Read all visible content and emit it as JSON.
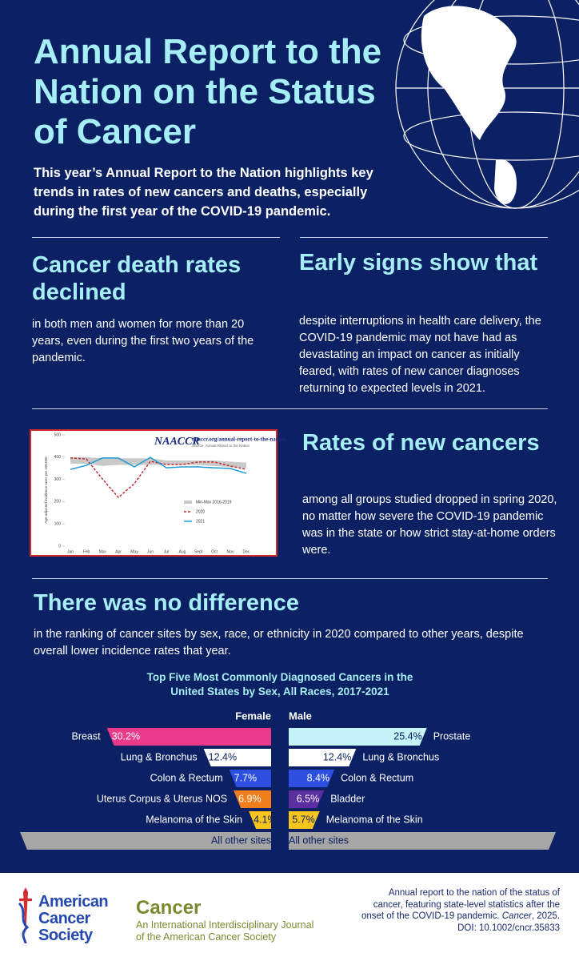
{
  "header": {
    "title": "Annual Report to the Nation on the Status of Cancer",
    "intro": "This year’s Annual Report to the Nation highlights key trends in rates of new cancers and deaths, especially during the first year of the COVID-19 pandemic."
  },
  "sections": [
    {
      "heading": "Cancer death rates declined",
      "body": "in both men and women for more than 20 years, even during the first two years of the pandemic."
    },
    {
      "heading": "Early signs show that",
      "body": "despite interruptions in health care delivery, the COVID-19 pandemic may not have had as devastating an impact on cancer as initially feared, with rates of new cancer diagnoses returning to expected levels in 2021."
    },
    {
      "heading": "Rates of new cancers",
      "body": "among all groups studied dropped in spring 2020, no matter how severe the COVID-19 pandemic was in the state or how strict stay-at-home orders were."
    },
    {
      "heading": "There was no difference",
      "body": "in the ranking of cancer sites by sex, race, or ethnicity in 2020 compared to other years, despite overall lower incidence rates that year."
    }
  ],
  "chart_data": [
    {
      "type": "line",
      "logo": "NAACCR",
      "title": "naaccr.org/annual-report-to-the-nation",
      "subtitle": "Source: Annual Report to the Nation",
      "y_label": "Age-adjusted incidence rates per 100,000",
      "categories": [
        "Jan",
        "Feb",
        "Mar",
        "Apr",
        "May",
        "Jun",
        "Jul",
        "Aug",
        "Sept",
        "Oct",
        "Nov",
        "Dec"
      ],
      "band": {
        "name": "Min-Max 2016-2019",
        "color": "#c9c9c9",
        "low": [
          370,
          370,
          360,
          365,
          365,
          365,
          365,
          365,
          365,
          360,
          355,
          350
        ],
        "high": [
          400,
          400,
          395,
          395,
          395,
          395,
          385,
          385,
          385,
          385,
          380,
          375
        ]
      },
      "series": [
        {
          "name": "2020",
          "color": "#c0282d",
          "dashed": true,
          "values": [
            396,
            392,
            302,
            219,
            281,
            381,
            367,
            367,
            378,
            378,
            360,
            345
          ]
        },
        {
          "name": "2021",
          "color": "#1e9bd7",
          "dashed": false,
          "values": [
            345,
            363,
            396,
            396,
            356,
            399,
            352,
            356,
            356,
            352,
            349,
            327
          ]
        }
      ],
      "ylim": [
        0,
        500
      ],
      "yticks": [
        0,
        100,
        200,
        300,
        400,
        500
      ]
    },
    {
      "type": "bar",
      "title": "Top Five Most Commonly Diagnosed Cancers in the United States by Sex, All Races, 2017-2021",
      "other_label": "All other sites",
      "other_color": "#a6a6a6",
      "series": [
        {
          "name": "Female",
          "categories": [
            "Breast",
            "Lung & Bronchus",
            "Colon & Rectum",
            "Uterus Corpus & Uterus NOS",
            "Melanoma of the Skin"
          ],
          "values": [
            30.2,
            12.4,
            7.7,
            6.9,
            4.1
          ],
          "value_labels": [
            "30.2%",
            "12.4%",
            "7.7%",
            "6.9%",
            "4.1%"
          ],
          "colors": [
            "#ea3a8b",
            "#ffffff",
            "#2d4fe0",
            "#f07e1c",
            "#f7c51c"
          ]
        },
        {
          "name": "Male",
          "categories": [
            "Prostate",
            "Lung & Bronchus",
            "Colon & Rectum",
            "Bladder",
            "Melanoma of the Skin"
          ],
          "values": [
            25.4,
            12.4,
            8.4,
            6.5,
            5.7
          ],
          "value_labels": [
            "25.4%",
            "12.4%",
            "8.4%",
            "6.5%",
            "5.7%"
          ],
          "colors": [
            "#c6f3f8",
            "#ffffff",
            "#2d4fe0",
            "#5a2ea0",
            "#f7c51c"
          ]
        }
      ]
    }
  ],
  "footer": {
    "org": "American Cancer Society",
    "journal": "Cancer",
    "journal_tagline": "An International Interdisciplinary Journal of the American Cancer Society",
    "citation": {
      "text": "Annual report to the nation of the status of cancer, featuring state-level statistics after the onset of the COVID-19 pandemic.",
      "journal": "Cancer",
      "rest": ", 2025. DOI: 10.1002/cncr.35833"
    }
  }
}
